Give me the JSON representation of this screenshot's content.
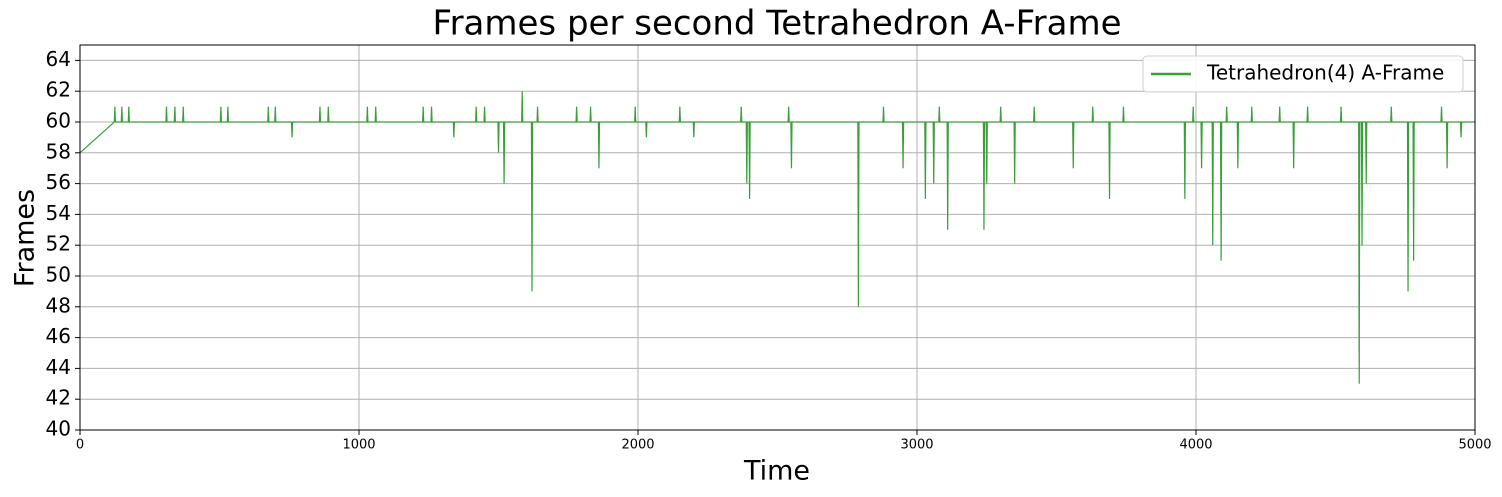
{
  "chart_data": {
    "type": "line",
    "title": "Frames per second Tetrahedron A-Frame",
    "xlabel": "Time",
    "ylabel": "Frames",
    "x": [
      0,
      123,
      125,
      127,
      148,
      150,
      152,
      173,
      175,
      177,
      308,
      310,
      312,
      338,
      340,
      342,
      368,
      370,
      372,
      503,
      505,
      507,
      528,
      530,
      532,
      673,
      675,
      677,
      698,
      700,
      702,
      758,
      760,
      762,
      858,
      860,
      862,
      888,
      890,
      892,
      1028,
      1030,
      1032,
      1058,
      1060,
      1062,
      1228,
      1230,
      1232,
      1258,
      1260,
      1262,
      1338,
      1340,
      1342,
      1418,
      1420,
      1422,
      1448,
      1450,
      1452,
      1498,
      1500,
      1502,
      1518,
      1520,
      1522,
      1583,
      1585,
      1587,
      1618,
      1620,
      1622,
      1638,
      1640,
      1642,
      1778,
      1780,
      1782,
      1828,
      1830,
      1832,
      1858,
      1860,
      1862,
      1988,
      1990,
      1992,
      2028,
      2030,
      2032,
      2148,
      2150,
      2152,
      2198,
      2200,
      2202,
      2368,
      2370,
      2372,
      2388,
      2390,
      2392,
      2398,
      2400,
      2402,
      2538,
      2540,
      2542,
      2548,
      2550,
      2552,
      2788,
      2790,
      2792,
      2878,
      2880,
      2882,
      2948,
      2950,
      2952,
      3028,
      3030,
      3032,
      3058,
      3060,
      3062,
      3078,
      3080,
      3082,
      3108,
      3110,
      3112,
      3238,
      3240,
      3242,
      3248,
      3250,
      3252,
      3298,
      3300,
      3302,
      3348,
      3350,
      3352,
      3418,
      3420,
      3422,
      3558,
      3560,
      3562,
      3628,
      3630,
      3632,
      3688,
      3690,
      3692,
      3738,
      3740,
      3742,
      3958,
      3960,
      3962,
      3988,
      3990,
      3992,
      4018,
      4020,
      4022,
      4058,
      4060,
      4062,
      4088,
      4090,
      4092,
      4108,
      4110,
      4112,
      4148,
      4150,
      4152,
      4198,
      4200,
      4202,
      4298,
      4300,
      4302,
      4348,
      4350,
      4352,
      4398,
      4400,
      4402,
      4518,
      4520,
      4522,
      4583,
      4585,
      4587,
      4593,
      4595,
      4597,
      4608,
      4610,
      4612,
      4698,
      4700,
      4702,
      4758,
      4760,
      4762,
      4778,
      4780,
      4782,
      4878,
      4880,
      4882,
      4898,
      4900,
      4902,
      4948,
      4950,
      4952,
      5000
    ],
    "series": [
      {
        "name": "Tetrahedron(4) A-Frame",
        "color": "#3a9e3a",
        "values": [
          58,
          60,
          61,
          60,
          60,
          61,
          60,
          60,
          61,
          60,
          60,
          61,
          60,
          60,
          61,
          60,
          60,
          61,
          60,
          60,
          61,
          60,
          60,
          61,
          60,
          60,
          61,
          60,
          60,
          61,
          60,
          60,
          59,
          60,
          60,
          61,
          60,
          60,
          61,
          60,
          60,
          61,
          60,
          60,
          61,
          60,
          60,
          61,
          60,
          60,
          61,
          60,
          60,
          59,
          60,
          60,
          61,
          60,
          60,
          61,
          60,
          60,
          58,
          60,
          60,
          56,
          60,
          60,
          62,
          60,
          60,
          49,
          60,
          60,
          61,
          60,
          60,
          61,
          60,
          60,
          61,
          60,
          60,
          57,
          60,
          60,
          61,
          60,
          60,
          59,
          60,
          60,
          61,
          60,
          60,
          59,
          60,
          60,
          61,
          60,
          60,
          56,
          60,
          60,
          55,
          60,
          60,
          61,
          60,
          60,
          57,
          60,
          60,
          48,
          60,
          60,
          61,
          60,
          60,
          57,
          60,
          60,
          55,
          60,
          60,
          56,
          60,
          60,
          61,
          60,
          60,
          53,
          60,
          60,
          53,
          60,
          60,
          56,
          60,
          60,
          61,
          60,
          60,
          56,
          60,
          60,
          61,
          60,
          60,
          57,
          60,
          60,
          61,
          60,
          60,
          55,
          60,
          60,
          61,
          60,
          60,
          55,
          60,
          60,
          61,
          60,
          60,
          57,
          60,
          60,
          52,
          60,
          60,
          51,
          60,
          60,
          61,
          60,
          60,
          57,
          60,
          60,
          61,
          60,
          60,
          61,
          60,
          60,
          57,
          60,
          60,
          61,
          60,
          60,
          61,
          60,
          60,
          43,
          60,
          60,
          52,
          60,
          60,
          56,
          60,
          60,
          61,
          60,
          60,
          49,
          60,
          60,
          51,
          60,
          60,
          61,
          60,
          60,
          57,
          60,
          60,
          59,
          60,
          60
        ]
      }
    ],
    "xlim": [
      0,
      5000
    ],
    "xticks": [
      0,
      1000,
      2000,
      3000,
      4000,
      5000
    ],
    "ylim": [
      40,
      65
    ],
    "yticks": [
      40,
      42,
      44,
      46,
      48,
      50,
      52,
      54,
      56,
      58,
      60,
      62,
      64
    ],
    "grid": true,
    "legend": "upper right"
  }
}
